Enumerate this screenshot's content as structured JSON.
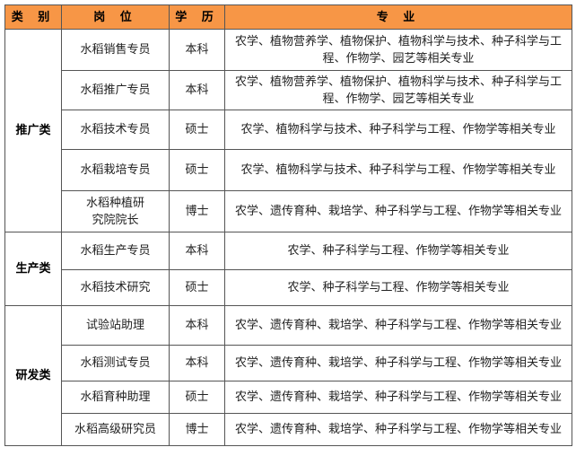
{
  "headers": [
    "类 别",
    "岗 位",
    "学 历",
    "专 业"
  ],
  "header_color": "#F79646",
  "groups": [
    {
      "category": "推广类",
      "rows": [
        {
          "position": "水稻销售专员",
          "degree": "本科",
          "major": "农学、植物营养学、植物保护、植物科学与技术、种子科学与工程、作物学、园艺等相关专业"
        },
        {
          "position": "水稻推广专员",
          "degree": "本科",
          "major": "农学、植物营养学、植物保护、植物科学与技术、种子科学与工程、作物学、园艺等相关专业"
        },
        {
          "position": "水稻技术专员",
          "degree": "硕士",
          "major": "农学、植物科学与技术、种子科学与工程、作物学等相关专业"
        },
        {
          "position": "水稻栽培专员",
          "degree": "硕士",
          "major": "农学、植物科学与技术、种子科学与工程、作物学等相关专业"
        },
        {
          "position": "水稻种植研究院院长",
          "degree": "博士",
          "major": "农学、遗传育种、栽培学、种子科学与工程、作物学等相关专业"
        }
      ]
    },
    {
      "category": "生产类",
      "rows": [
        {
          "position": "水稻生产专员",
          "degree": "本科",
          "major": "农学、种子科学与工程、作物学等相关专业"
        },
        {
          "position": "水稻技术研究",
          "degree": "硕士",
          "major": "农学、种子科学与工程、作物学等相关专业"
        }
      ]
    },
    {
      "category": "研发类",
      "rows": [
        {
          "position": "试验站助理",
          "degree": "本科",
          "major": "农学、遗传育种、栽培学、种子科学与工程、作物学等相关专业"
        },
        {
          "position": "水稻测试专员",
          "degree": "本科",
          "major": "农学、遗传育种、栽培学、种子科学与工程、作物学等相关专业"
        },
        {
          "position": "水稻育种助理",
          "degree": "硕士",
          "major": "农学、遗传育种、栽培学、种子科学与工程、作物学等相关专业"
        },
        {
          "position": "水稻高级研究员",
          "degree": "博士",
          "major": "农学、遗传育种、栽培学、种子科学与工程、作物学等相关专业"
        }
      ]
    }
  ]
}
